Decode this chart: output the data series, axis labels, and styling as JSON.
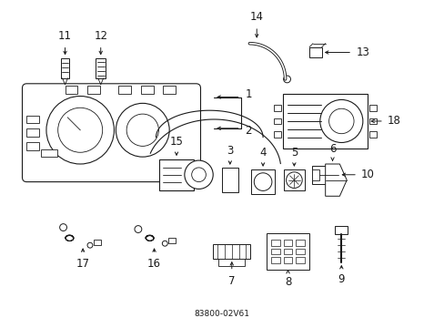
{
  "bg_color": "#ffffff",
  "line_color": "#1a1a1a",
  "lw": 0.8,
  "font_size": 8.5,
  "fig_w": 4.89,
  "fig_h": 3.6,
  "dpi": 100
}
